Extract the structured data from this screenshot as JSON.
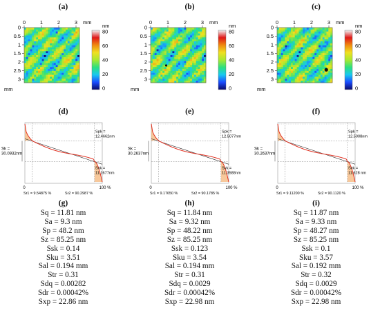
{
  "colors": {
    "colorbar": [
      "#0a0a6a",
      "#1a4cff",
      "#18c8f0",
      "#2ce080",
      "#a8e830",
      "#f0e020",
      "#f08a10",
      "#e01818",
      "#f0f0f0"
    ],
    "curve": "#e03020",
    "fill": "#f4b070"
  },
  "panels": [
    {
      "map_label": "(a)",
      "curve_label": "(d)",
      "params_label": "(g)",
      "axis": {
        "x_ticks": [
          "0",
          "1",
          "2",
          "3"
        ],
        "x_unit": "mm",
        "y_ticks": [
          "0",
          "0.5",
          "1",
          "1.5",
          "2",
          "2.5",
          "3"
        ],
        "y_unit": "mm"
      },
      "colorbar": {
        "unit": "nm",
        "ticks": [
          "80",
          "60",
          "40",
          "20",
          "0"
        ]
      },
      "markers": [],
      "abbott": {
        "spk": "Spk =",
        "spk_val": "12.4662nm",
        "sk": "Sk =",
        "sk_val": "30.0932nm",
        "svk": "Svk =",
        "svk_val": "11.1677nm",
        "sr1": "Sr1 = 9.54875 %",
        "sr2": "Sr2 = 90.2987 %",
        "x0": "0",
        "x100": "100 %"
      },
      "params": [
        "Sq = 11.81 nm",
        "Sa = 9.3 nm",
        "Sp = 48.2 nm",
        "Sz = 85.25 nm",
        "Ssk = 0.14",
        "Sku = 3.51",
        "Sal = 0.194 mm",
        "Str = 0.31",
        "Sdq = 0.00282",
        "Sdr = 0.00042%",
        "Sxp = 22.86 nm"
      ]
    },
    {
      "map_label": "(b)",
      "curve_label": "(e)",
      "params_label": "(h)",
      "axis": {
        "x_ticks": [
          "0",
          "1",
          "2",
          "3"
        ],
        "x_unit": "mm",
        "y_ticks": [
          "0",
          "0.5",
          "1",
          "1.5",
          "2",
          "2.5",
          "3"
        ],
        "y_unit": "mm"
      },
      "colorbar": {
        "unit": "nm",
        "ticks": [
          "80",
          "60",
          "40",
          "20",
          "0"
        ]
      },
      "markers": [
        {
          "x": 0.9,
          "y": 2.2
        }
      ],
      "abbott": {
        "spk": "Spk =",
        "spk_val": "12.5077nm",
        "sk": "Sk =",
        "sk_val": "30.2637nm",
        "svk": "Svk =",
        "svk_val": "11.3588nm",
        "sr1": "Sr1 = 9.17650 %",
        "sr2": "Sr2 = 90.1785 %",
        "x0": "0",
        "x100": "100 %"
      },
      "params": [
        "Sq = 11.84 nm",
        "Sa = 9.32 nm",
        "Sp = 48.22 nm",
        "Sz = 85.25 nm",
        "Ssk = 0.123",
        "Sku = 3.54",
        "Sal = 0.194 mm",
        "Str = 0.31",
        "Sdq = 0.0029",
        "Sdr = 0.00042%",
        "Sxp = 22.98 nm"
      ]
    },
    {
      "map_label": "(c)",
      "curve_label": "(f)",
      "params_label": "(i)",
      "axis": {
        "x_ticks": [
          "0",
          "1",
          "2",
          "3"
        ],
        "x_unit": "mm",
        "y_ticks": [
          "0",
          "0.5",
          "1",
          "1.5",
          "2",
          "2.5",
          "3"
        ],
        "y_unit": "mm"
      },
      "colorbar": {
        "unit": "nm",
        "ticks": [
          "80",
          "60",
          "40",
          "20",
          "0"
        ]
      },
      "markers": [
        {
          "x": 2.85,
          "y": 2.45
        }
      ],
      "abbott": {
        "spk": "Spk =",
        "spk_val": "12.5008nm",
        "sk": "Sk =",
        "sk_val": "30.2637nm",
        "svk": "Svk =",
        "svk_val": "11.628 nm",
        "sr1": "Sr1 = 9.11200 %",
        "sr2": "Sr2 = 90.1120 %",
        "x0": "0",
        "x100": "100 %"
      },
      "params": [
        "Sq = 11.87 nm",
        "Sa = 9.33 nm",
        "Sp = 48.27 nm",
        "Sz = 85.25 nm",
        "Ssk = 0.1",
        "Sku = 3.57",
        "Sal = 0.192 mm",
        "Str = 0.32",
        "Sdq = 0.0029",
        "Sdr = 0.00042%",
        "Sxp = 22.98 nm"
      ]
    }
  ]
}
